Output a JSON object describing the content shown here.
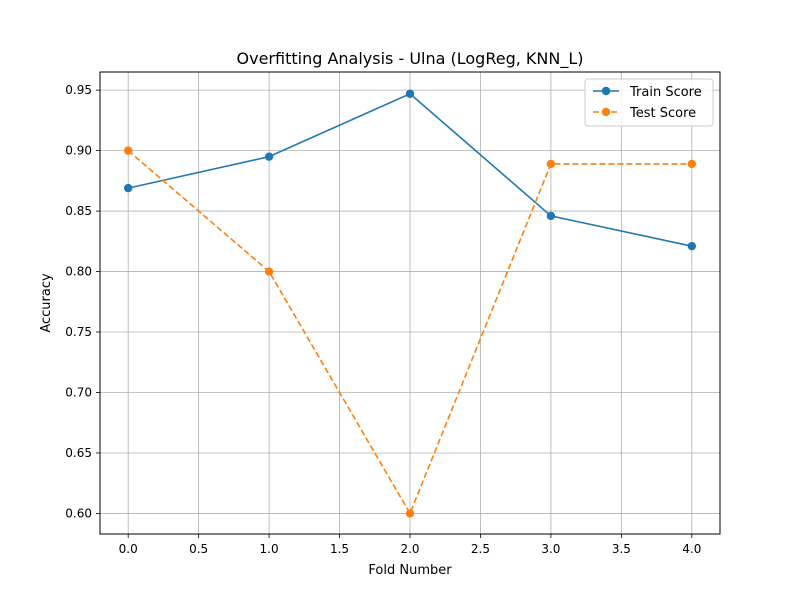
{
  "chart_data": {
    "type": "line",
    "title": "Overfitting Analysis - Ulna (LogReg, KNN_L)",
    "xlabel": "Fold Number",
    "ylabel": "Accuracy",
    "x": [
      0,
      1,
      2,
      3,
      4
    ],
    "xlim": [
      -0.2,
      4.2
    ],
    "ylim": [
      0.583,
      0.965
    ],
    "x_ticks": [
      0.0,
      0.5,
      1.0,
      1.5,
      2.0,
      2.5,
      3.0,
      3.5,
      4.0
    ],
    "x_tick_labels": [
      "0.0",
      "0.5",
      "1.0",
      "1.5",
      "2.0",
      "2.5",
      "3.0",
      "3.5",
      "4.0"
    ],
    "y_ticks": [
      0.6,
      0.65,
      0.7,
      0.75,
      0.8,
      0.85,
      0.9,
      0.95
    ],
    "y_tick_labels": [
      "0.60",
      "0.65",
      "0.70",
      "0.75",
      "0.80",
      "0.85",
      "0.90",
      "0.95"
    ],
    "grid": true,
    "legend_position": "top-right",
    "series": [
      {
        "name": "Train Score",
        "values": [
          0.869,
          0.895,
          0.947,
          0.846,
          0.821
        ],
        "color": "#1f77b4",
        "style": "solid",
        "marker": "circle"
      },
      {
        "name": "Test Score",
        "values": [
          0.9,
          0.8,
          0.6,
          0.889,
          0.889
        ],
        "color": "#ff7f0e",
        "style": "dashed",
        "marker": "circle"
      }
    ]
  }
}
